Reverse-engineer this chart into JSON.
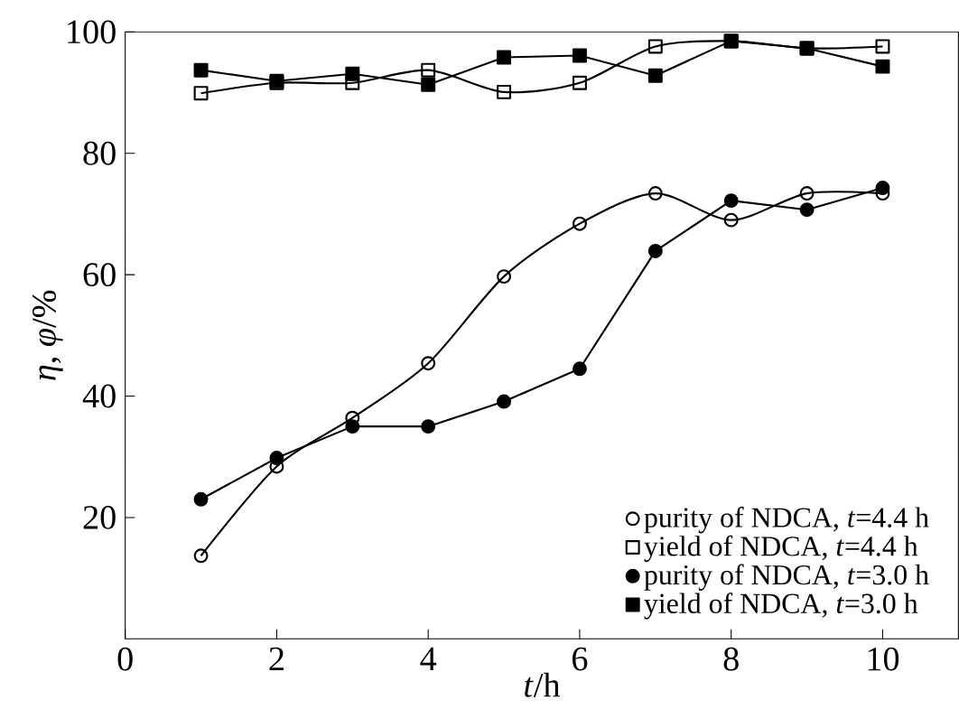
{
  "chart_data": {
    "type": "line",
    "xlabel": "*t*/h",
    "ylabel": "*η*, *φ*/%",
    "x": [
      1,
      2,
      3,
      4,
      5,
      6,
      7,
      8,
      9,
      10
    ],
    "xlim": [
      0,
      11
    ],
    "xticks": [
      0,
      2,
      4,
      6,
      8,
      10
    ],
    "ylim": [
      0,
      100
    ],
    "yticks": [
      20,
      40,
      60,
      80,
      100
    ],
    "legend": "bottom right",
    "grid": false,
    "series": [
      {
        "name": "purity of NDCA, *t*=4.4 h",
        "color": "#000000",
        "marker": "circle",
        "values": [
          13.7,
          28.4,
          36.4,
          45.4,
          59.7,
          68.4,
          73.4,
          69,
          73.4,
          73.4
        ]
      },
      {
        "name": "yield of NDCA, *t*=4.4 h",
        "color": "#000000",
        "marker": "square",
        "values": [
          89.9,
          91.6,
          91.6,
          93.7,
          90.1,
          91.6,
          97.6,
          98.5,
          97.3,
          97.6
        ]
      },
      {
        "name": "purity of NDCA, *t*=3.0 h",
        "color": "#000000",
        "marker": "circle",
        "values": [
          23,
          29.8,
          35,
          35,
          39.1,
          44.5,
          63.9,
          72.2,
          70.7,
          74.3
        ]
      },
      {
        "name": "yield of NDCA, *t*=3.0 h",
        "color": "#000000",
        "marker": "square",
        "values": [
          93.7,
          91.9,
          93.1,
          91.3,
          95.8,
          96.1,
          92.8,
          98.5,
          97.3,
          94.3
        ]
      }
    ]
  }
}
